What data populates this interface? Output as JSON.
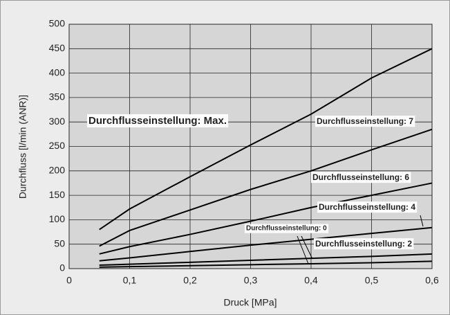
{
  "chart_data": {
    "type": "line",
    "xlabel": "Druck [MPa]",
    "ylabel": "Durchfluss [l/min (ANR)]",
    "x": [
      0.05,
      0.1,
      0.2,
      0.3,
      0.4,
      0.5,
      0.6
    ],
    "series": [
      {
        "name": "Durchflusseinstellung: Max.",
        "color": "#000000",
        "values": [
          80,
          122,
          188,
          253,
          316,
          390,
          450
        ]
      },
      {
        "name": "Durchflusseinstellung: 7",
        "color": "#000000",
        "values": [
          46,
          78,
          120,
          162,
          200,
          243,
          285
        ]
      },
      {
        "name": "Durchflusseinstellung: 6",
        "color": "#000000",
        "values": [
          30,
          45,
          70,
          97,
          125,
          150,
          175
        ]
      },
      {
        "name": "Durchflusseinstellung: 4",
        "color": "#000000",
        "values": [
          16,
          22,
          35,
          48,
          60,
          72,
          84
        ]
      },
      {
        "name": "Durchflusseinstellung: 0",
        "color": "#000000",
        "values": [
          3,
          4,
          6,
          8,
          10,
          12,
          15
        ]
      },
      {
        "name": "Durchflusseinstellung: 2",
        "color": "#000000",
        "values": [
          7,
          9,
          13,
          17,
          21,
          25,
          30
        ]
      }
    ],
    "xlim": [
      0,
      0.6
    ],
    "xticks": [
      0,
      {
        "value": 0.1,
        "label": "0,1"
      },
      {
        "value": 0.2,
        "label": "0,2"
      },
      {
        "value": 0.3,
        "label": "0,3"
      },
      {
        "value": 0.4,
        "label": "0,4"
      },
      {
        "value": 0.5,
        "label": "0,5"
      },
      {
        "value": 0.6,
        "label": "0,6"
      }
    ],
    "ylim": [
      0,
      500
    ],
    "yticks": [
      0,
      50,
      100,
      150,
      200,
      250,
      300,
      350,
      400,
      450,
      500
    ],
    "grid": true
  }
}
